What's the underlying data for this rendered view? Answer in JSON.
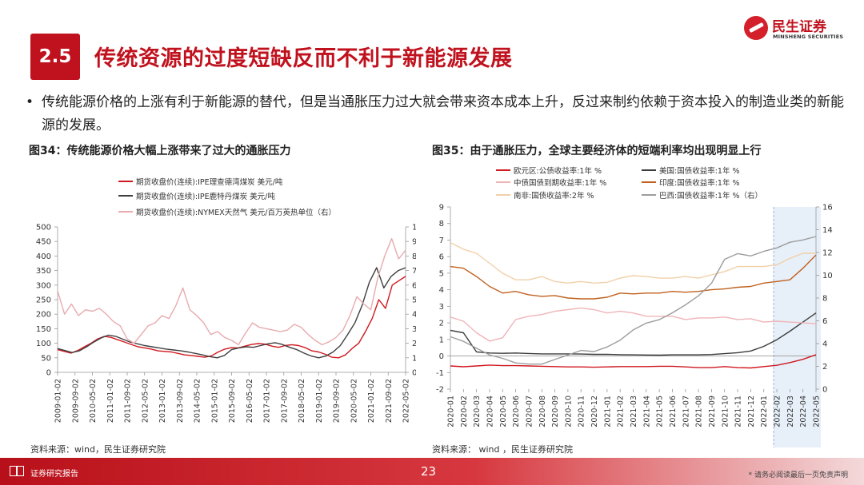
{
  "header": {
    "section_number": "2.5",
    "title": "传统资源的过度短缺反而不利于新能源发展",
    "logo_cn": "民生证券",
    "logo_en": "MINSHENG SECURITIES"
  },
  "bullet": {
    "symbol": "•",
    "text": "传统能源价格的上涨有利于新能源的替代，但是当通胀压力过大就会带来资本成本上升，反过来制约依赖于资本投入的制造业类的新能源的发展。"
  },
  "figures": {
    "left_title": "图34：传统能源价格大幅上涨带来了过大的通胀压力",
    "right_title": "图35：由于通胀压力，全球主要经济体的短端利率均出现明显上行",
    "left_source": "资料来源：wind，民生证券研究院",
    "right_source": "资料来源： wind ，民生证券研究院"
  },
  "footer": {
    "label": "证券研究报告",
    "page": "23",
    "disclaimer": "* 请务必阅读最后一页免责声明"
  },
  "chart_data": [
    {
      "type": "line",
      "x_ticks": [
        "2009-01-02",
        "2009-09-02",
        "2010-05-02",
        "2011-01-02",
        "2011-09-02",
        "2012-05-02",
        "2013-01-02",
        "2013-09-02",
        "2014-05-02",
        "2015-01-02",
        "2015-09-02",
        "2016-05-02",
        "2017-01-02",
        "2017-09-02",
        "2018-05-02",
        "2019-01-02",
        "2019-09-02",
        "2020-05-02",
        "2021-01-02",
        "2021-09-02",
        "2022-05-02"
      ],
      "y_left_ticks": [
        "0",
        "50",
        "100",
        "150",
        "200",
        "250",
        "300",
        "350",
        "400",
        "450",
        "500"
      ],
      "y_right_ticks": [
        "0",
        "1",
        "2",
        "3",
        "4",
        "5",
        "6",
        "7",
        "8",
        "9",
        "10"
      ],
      "ylim_left": [
        0,
        500
      ],
      "ylim_right": [
        0,
        10
      ],
      "series": [
        {
          "name": "期货收盘价(连续):IPE理查德湾煤炭 美元/吨",
          "axis": "left",
          "color": "#d0181f",
          "values": [
            78,
            72,
            66,
            75,
            88,
            100,
            115,
            124,
            120,
            112,
            104,
            96,
            88,
            84,
            80,
            74,
            72,
            70,
            65,
            60,
            58,
            55,
            52,
            57,
            70,
            80,
            85,
            84,
            90,
            96,
            99,
            97,
            90,
            86,
            92,
            95,
            92,
            85,
            74,
            70,
            62,
            52,
            50,
            60,
            82,
            100,
            140,
            185,
            250,
            220,
            300,
            315,
            330
          ]
        },
        {
          "name": "期货收盘价(连续):IPE鹿特丹煤炭 美元/吨",
          "axis": "left",
          "color": "#3f3f3f",
          "values": [
            82,
            75,
            68,
            74,
            88,
            104,
            118,
            128,
            124,
            114,
            104,
            98,
            92,
            88,
            84,
            80,
            77,
            74,
            70,
            65,
            60,
            54,
            50,
            58,
            78,
            84,
            88,
            86,
            92,
            98,
            102,
            96,
            86,
            78,
            66,
            56,
            50,
            56,
            70,
            92,
            130,
            170,
            230,
            310,
            360,
            290,
            330,
            350,
            360
          ]
        },
        {
          "name": "期货收盘价(连续):NYMEX天然气 美元/百万英热单位（右）",
          "axis": "right",
          "color": "#e8aaae",
          "values": [
            5.6,
            4.0,
            4.7,
            3.9,
            4.3,
            4.2,
            4.4,
            4.0,
            3.5,
            3.2,
            2.3,
            2.0,
            2.6,
            3.2,
            3.4,
            3.9,
            3.7,
            4.6,
            5.8,
            4.3,
            3.9,
            3.4,
            2.6,
            2.8,
            2.4,
            2.2,
            1.9,
            2.7,
            3.4,
            3.1,
            3.0,
            2.9,
            2.8,
            2.9,
            3.3,
            3.1,
            2.6,
            2.2,
            1.9,
            2.1,
            2.4,
            2.9,
            3.9,
            5.2,
            4.7,
            4.3,
            6.5,
            8.0,
            9.2,
            7.8,
            8.4
          ]
        }
      ],
      "grid": false,
      "legend_position": "top-left"
    },
    {
      "type": "line",
      "x_ticks": [
        "2020-01",
        "2020-02",
        "2020-03",
        "2020-04",
        "2020-05",
        "2020-06",
        "2020-07",
        "2020-08",
        "2020-09",
        "2020-10",
        "2020-11",
        "2020-12",
        "2021-01",
        "2021-02",
        "2021-03",
        "2021-04",
        "2021-05",
        "2021-06",
        "2021-07",
        "2021-08",
        "2021-09",
        "2021-10",
        "2021-11",
        "2021-12",
        "2022-01",
        "2022-02",
        "2022-03",
        "2022-04",
        "2022-05"
      ],
      "y_left_ticks": [
        "-2",
        "-1",
        "0",
        "1",
        "2",
        "3",
        "4",
        "5",
        "6",
        "7",
        "8",
        "9"
      ],
      "y_right_ticks": [
        "0",
        "2",
        "4",
        "6",
        "8",
        "10",
        "12",
        "14",
        "16"
      ],
      "ylim_left": [
        -2,
        9
      ],
      "ylim_right": [
        0,
        16
      ],
      "highlight_range": [
        "2022-02",
        "2022-05"
      ],
      "series": [
        {
          "name": "欧元区:公债收益率:1年 %",
          "axis": "left",
          "color": "#d0181f",
          "values": [
            -0.6,
            -0.65,
            -0.6,
            -0.55,
            -0.58,
            -0.58,
            -0.6,
            -0.62,
            -0.64,
            -0.66,
            -0.66,
            -0.68,
            -0.66,
            -0.64,
            -0.64,
            -0.64,
            -0.62,
            -0.62,
            -0.66,
            -0.7,
            -0.7,
            -0.64,
            -0.7,
            -0.72,
            -0.64,
            -0.56,
            -0.4,
            -0.2,
            0.08
          ]
        },
        {
          "name": "美国:国债收益率:1年 %",
          "axis": "left",
          "color": "#3b3b3b",
          "values": [
            1.55,
            1.4,
            0.25,
            0.18,
            0.16,
            0.18,
            0.15,
            0.13,
            0.13,
            0.13,
            0.12,
            0.1,
            0.1,
            0.08,
            0.07,
            0.06,
            0.05,
            0.07,
            0.07,
            0.07,
            0.09,
            0.14,
            0.2,
            0.3,
            0.58,
            0.98,
            1.5,
            2.05,
            2.6
          ]
        },
        {
          "name": "中债国债到期收益率:1年 %",
          "axis": "left",
          "color": "#f0b4b8",
          "values": [
            2.35,
            2.1,
            1.4,
            0.9,
            1.1,
            2.2,
            2.4,
            2.5,
            2.7,
            2.8,
            2.9,
            2.8,
            2.6,
            2.7,
            2.6,
            2.4,
            2.4,
            2.4,
            2.2,
            2.3,
            2.3,
            2.35,
            2.2,
            2.25,
            2.05,
            2.1,
            2.05,
            2.0,
            1.95
          ]
        },
        {
          "name": "印度:国债收益率:1年 %",
          "axis": "left",
          "color": "#c0611f",
          "values": [
            5.4,
            5.3,
            4.8,
            4.2,
            3.8,
            3.9,
            3.7,
            3.6,
            3.65,
            3.5,
            3.45,
            3.45,
            3.55,
            3.8,
            3.75,
            3.8,
            3.8,
            3.9,
            3.85,
            3.9,
            4.0,
            4.05,
            4.15,
            4.2,
            4.4,
            4.5,
            4.6,
            5.3,
            6.1
          ]
        },
        {
          "name": "南非:国债收益率:2年 %",
          "axis": "left",
          "color": "#f1d0a8",
          "values": [
            6.85,
            6.45,
            6.2,
            5.6,
            5.0,
            4.6,
            4.6,
            4.8,
            4.5,
            4.4,
            4.5,
            4.4,
            4.45,
            4.7,
            4.85,
            4.8,
            4.7,
            4.7,
            4.8,
            4.7,
            4.9,
            5.1,
            5.4,
            5.4,
            5.4,
            5.5,
            5.9,
            6.2,
            6.2
          ]
        },
        {
          "name": "巴西:国债收益率:1年 %（右）",
          "axis": "right",
          "color": "#9d9d9d",
          "values": [
            4.6,
            4.2,
            3.6,
            3.0,
            2.7,
            2.3,
            2.2,
            2.2,
            2.6,
            3.0,
            3.4,
            3.3,
            3.7,
            4.3,
            5.2,
            5.8,
            6.1,
            6.7,
            7.4,
            8.2,
            9.3,
            11.4,
            11.9,
            11.7,
            12.1,
            12.4,
            12.9,
            13.1,
            13.4
          ]
        }
      ],
      "grid": false,
      "legend_position": "top"
    }
  ]
}
